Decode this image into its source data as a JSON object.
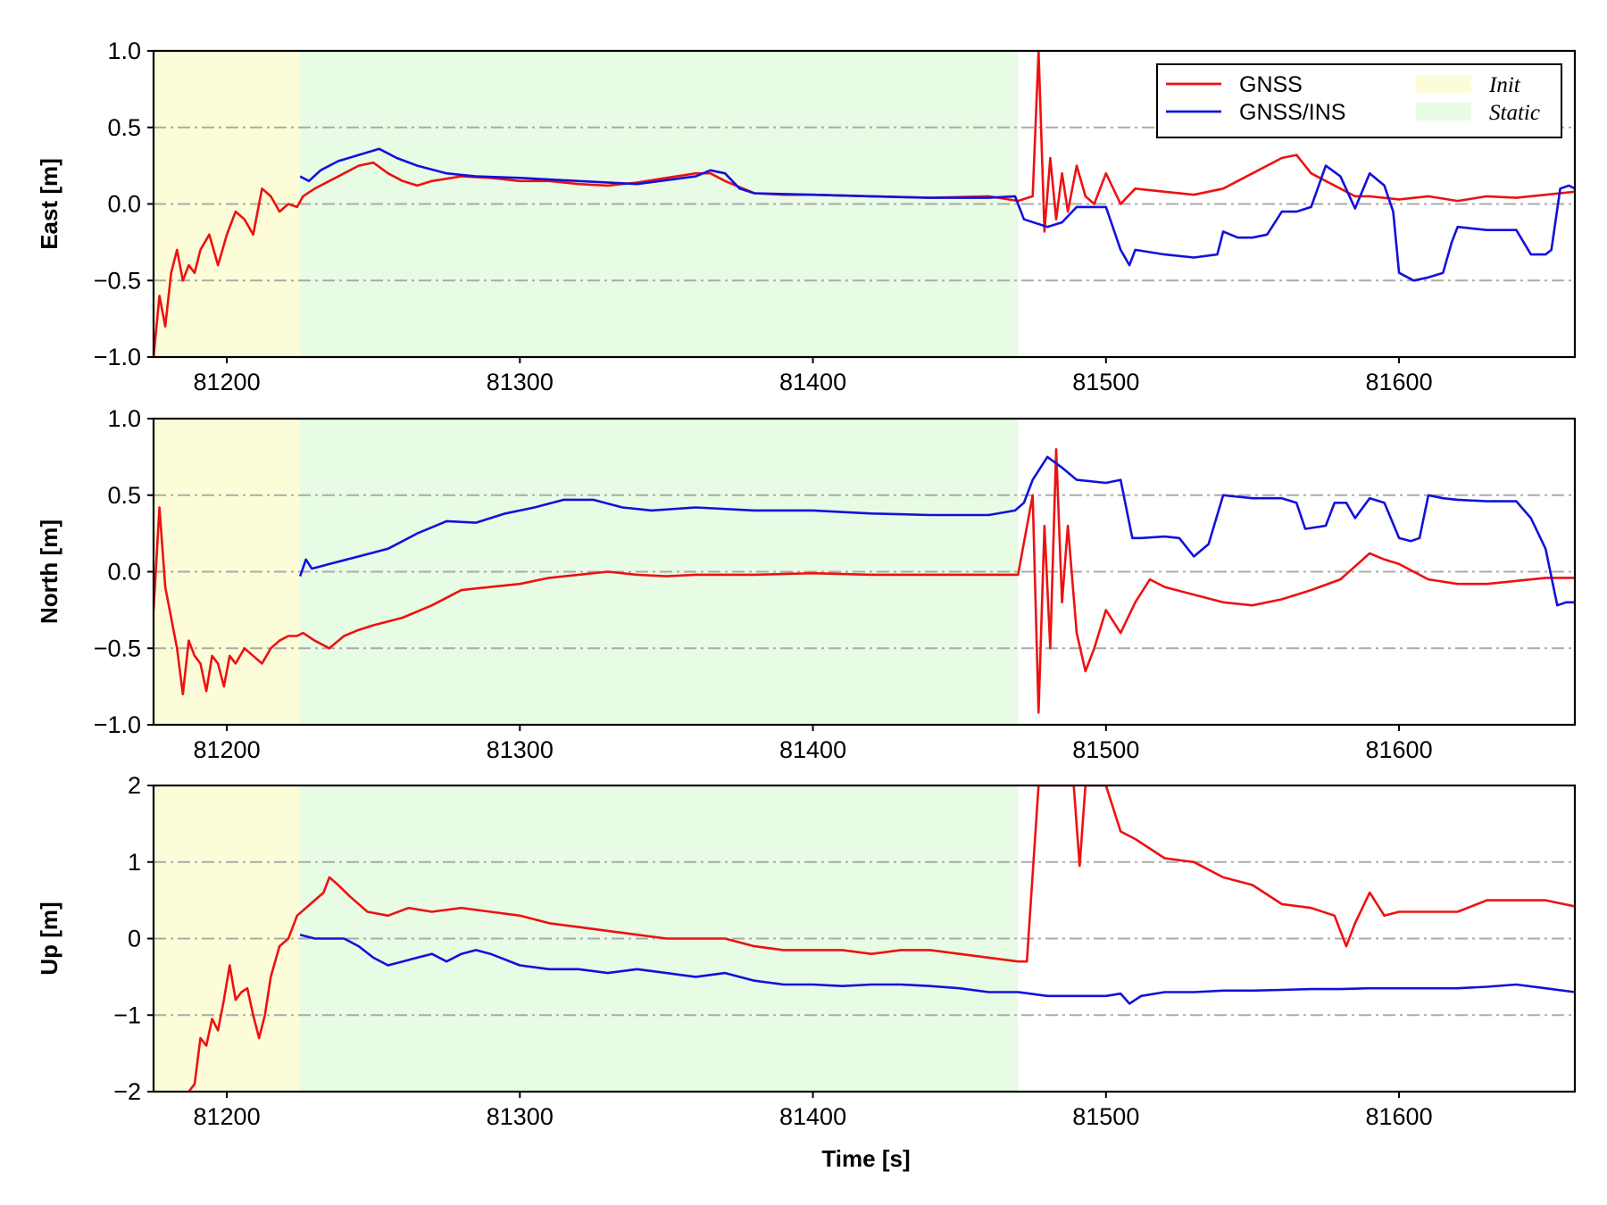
{
  "chart_data": [
    {
      "type": "line",
      "ylabel": "East [m]",
      "xlim": [
        81175,
        81660
      ],
      "ylim": [
        -1.0,
        1.0
      ],
      "yticks": [
        -1.0,
        -0.5,
        0.0,
        0.5,
        1.0
      ],
      "ytick_labels": [
        "−1.0",
        "−0.5",
        "0.0",
        "0.5",
        "1.0"
      ],
      "xticks": [
        81200,
        81300,
        81400,
        81500,
        81600
      ],
      "xtick_labels": [
        "81200",
        "81300",
        "81400",
        "81500",
        "81600"
      ],
      "hlines_dashdot": [
        -0.5,
        0.0,
        0.5
      ],
      "shaded_regions": [
        {
          "name": "Init",
          "x0": 81175,
          "x1": 81225,
          "color": "#fdfcd8"
        },
        {
          "name": "Static",
          "x0": 81225,
          "x1": 81470,
          "color": "#e8fbe4"
        }
      ],
      "legend": {
        "placement": "top-right",
        "entries": [
          {
            "label": "GNSS",
            "kind": "line",
            "color": "#ee1111"
          },
          {
            "label": "GNSS/INS",
            "kind": "line",
            "color": "#1111dd"
          },
          {
            "label": "Init",
            "kind": "patch",
            "color": "#fdfcd8"
          },
          {
            "label": "Static",
            "kind": "patch",
            "color": "#e8fbe4"
          }
        ]
      },
      "series": [
        {
          "name": "GNSS",
          "color": "#ee1111",
          "x": [
            81175,
            81177,
            81179,
            81181,
            81183,
            81185,
            81187,
            81189,
            81191,
            81194,
            81197,
            81200,
            81203,
            81206,
            81209,
            81212,
            81215,
            81218,
            81221,
            81224,
            81226,
            81230,
            81235,
            81240,
            81245,
            81250,
            81255,
            81260,
            81265,
            81270,
            81280,
            81290,
            81300,
            81310,
            81320,
            81330,
            81340,
            81350,
            81360,
            81365,
            81370,
            81380,
            81390,
            81400,
            81420,
            81440,
            81460,
            81470,
            81475,
            81477,
            81479,
            81481,
            81483,
            81485,
            81487,
            81490,
            81493,
            81496,
            81500,
            81505,
            81510,
            81520,
            81530,
            81540,
            81550,
            81560,
            81565,
            81570,
            81575,
            81580,
            81585,
            81590,
            81600,
            81610,
            81620,
            81630,
            81640,
            81650,
            81660
          ],
          "y": [
            -1.0,
            -0.6,
            -0.8,
            -0.45,
            -0.3,
            -0.5,
            -0.4,
            -0.45,
            -0.3,
            -0.2,
            -0.4,
            -0.2,
            -0.05,
            -0.1,
            -0.2,
            0.1,
            0.05,
            -0.05,
            0.0,
            -0.02,
            0.05,
            0.1,
            0.15,
            0.2,
            0.25,
            0.27,
            0.2,
            0.15,
            0.12,
            0.15,
            0.18,
            0.17,
            0.15,
            0.15,
            0.13,
            0.12,
            0.14,
            0.17,
            0.2,
            0.2,
            0.15,
            0.07,
            0.06,
            0.06,
            0.05,
            0.04,
            0.05,
            0.02,
            0.05,
            1.0,
            -0.18,
            0.3,
            -0.1,
            0.2,
            -0.05,
            0.25,
            0.05,
            0.0,
            0.2,
            0.0,
            0.1,
            0.08,
            0.06,
            0.1,
            0.2,
            0.3,
            0.32,
            0.2,
            0.15,
            0.1,
            0.05,
            0.05,
            0.03,
            0.05,
            0.02,
            0.05,
            0.04,
            0.06,
            0.08
          ]
        },
        {
          "name": "GNSS/INS",
          "color": "#1111dd",
          "x": [
            81225,
            81228,
            81232,
            81238,
            81245,
            81252,
            81258,
            81265,
            81275,
            81285,
            81300,
            81320,
            81340,
            81360,
            81365,
            81370,
            81375,
            81380,
            81400,
            81420,
            81440,
            81460,
            81469,
            81472,
            81480,
            81485,
            81490,
            81500,
            81505,
            81508,
            81510,
            81520,
            81530,
            81538,
            81540,
            81545,
            81550,
            81555,
            81560,
            81565,
            81570,
            81575,
            81580,
            81585,
            81590,
            81595,
            81598,
            81600,
            81605,
            81610,
            81615,
            81618,
            81620,
            81630,
            81640,
            81645,
            81650,
            81652,
            81655,
            81658,
            81660
          ],
          "y": [
            0.18,
            0.15,
            0.22,
            0.28,
            0.32,
            0.36,
            0.3,
            0.25,
            0.2,
            0.18,
            0.17,
            0.15,
            0.13,
            0.18,
            0.22,
            0.2,
            0.1,
            0.07,
            0.06,
            0.05,
            0.04,
            0.04,
            0.05,
            -0.1,
            -0.15,
            -0.12,
            -0.02,
            -0.02,
            -0.3,
            -0.4,
            -0.3,
            -0.33,
            -0.35,
            -0.33,
            -0.18,
            -0.22,
            -0.22,
            -0.2,
            -0.05,
            -0.05,
            -0.02,
            0.25,
            0.18,
            -0.03,
            0.2,
            0.12,
            -0.05,
            -0.45,
            -0.5,
            -0.48,
            -0.45,
            -0.25,
            -0.15,
            -0.17,
            -0.17,
            -0.33,
            -0.33,
            -0.3,
            0.1,
            0.12,
            0.1
          ]
        }
      ]
    },
    {
      "type": "line",
      "ylabel": "North [m]",
      "xlim": [
        81175,
        81660
      ],
      "ylim": [
        -1.0,
        1.0
      ],
      "yticks": [
        -1.0,
        -0.5,
        0.0,
        0.5,
        1.0
      ],
      "ytick_labels": [
        "−1.0",
        "−0.5",
        "0.0",
        "0.5",
        "1.0"
      ],
      "xticks": [
        81200,
        81300,
        81400,
        81500,
        81600
      ],
      "xtick_labels": [
        "81200",
        "81300",
        "81400",
        "81500",
        "81600"
      ],
      "hlines_dashdot": [
        -0.5,
        0.0,
        0.5
      ],
      "shaded_regions": [
        {
          "name": "Init",
          "x0": 81175,
          "x1": 81225,
          "color": "#fdfcd8"
        },
        {
          "name": "Static",
          "x0": 81225,
          "x1": 81470,
          "color": "#e8fbe4"
        }
      ],
      "series": [
        {
          "name": "GNSS",
          "color": "#ee1111",
          "x": [
            81175,
            81177,
            81179,
            81181,
            81183,
            81185,
            81187,
            81189,
            81191,
            81193,
            81195,
            81197,
            81199,
            81201,
            81203,
            81206,
            81209,
            81212,
            81215,
            81218,
            81221,
            81224,
            81226,
            81230,
            81235,
            81240,
            81245,
            81250,
            81260,
            81270,
            81280,
            81290,
            81300,
            81310,
            81320,
            81330,
            81340,
            81350,
            81360,
            81380,
            81400,
            81420,
            81440,
            81460,
            81470,
            81475,
            81477,
            81479,
            81481,
            81483,
            81485,
            81487,
            81490,
            81493,
            81496,
            81500,
            81505,
            81510,
            81515,
            81520,
            81530,
            81540,
            81550,
            81560,
            81570,
            81580,
            81590,
            81595,
            81600,
            81610,
            81620,
            81630,
            81640,
            81650,
            81660
          ],
          "y": [
            -0.25,
            0.42,
            -0.1,
            -0.3,
            -0.5,
            -0.8,
            -0.45,
            -0.55,
            -0.6,
            -0.78,
            -0.55,
            -0.6,
            -0.75,
            -0.55,
            -0.6,
            -0.5,
            -0.55,
            -0.6,
            -0.5,
            -0.45,
            -0.42,
            -0.42,
            -0.4,
            -0.45,
            -0.5,
            -0.42,
            -0.38,
            -0.35,
            -0.3,
            -0.22,
            -0.12,
            -0.1,
            -0.08,
            -0.04,
            -0.02,
            0.0,
            -0.02,
            -0.03,
            -0.02,
            -0.02,
            -0.01,
            -0.02,
            -0.02,
            -0.02,
            -0.02,
            0.5,
            -0.92,
            0.3,
            -0.5,
            0.8,
            -0.2,
            0.3,
            -0.4,
            -0.65,
            -0.5,
            -0.25,
            -0.4,
            -0.2,
            -0.05,
            -0.1,
            -0.15,
            -0.2,
            -0.22,
            -0.18,
            -0.12,
            -0.05,
            0.12,
            0.08,
            0.05,
            -0.05,
            -0.08,
            -0.08,
            -0.06,
            -0.04,
            -0.04
          ]
        },
        {
          "name": "GNSS/INS",
          "color": "#1111dd",
          "x": [
            81225,
            81227,
            81229,
            81235,
            81245,
            81255,
            81265,
            81275,
            81285,
            81295,
            81305,
            81315,
            81325,
            81335,
            81345,
            81360,
            81380,
            81400,
            81420,
            81440,
            81460,
            81469,
            81472,
            81475,
            81480,
            81485,
            81490,
            81500,
            81505,
            81509,
            81512,
            81520,
            81525,
            81530,
            81535,
            81540,
            81550,
            81560,
            81565,
            81568,
            81575,
            81578,
            81582,
            81585,
            81590,
            81595,
            81600,
            81604,
            81607,
            81610,
            81615,
            81620,
            81630,
            81640,
            81645,
            81650,
            81654,
            81657,
            81660
          ],
          "y": [
            -0.03,
            0.08,
            0.02,
            0.05,
            0.1,
            0.15,
            0.25,
            0.33,
            0.32,
            0.38,
            0.42,
            0.47,
            0.47,
            0.42,
            0.4,
            0.42,
            0.4,
            0.4,
            0.38,
            0.37,
            0.37,
            0.4,
            0.45,
            0.6,
            0.75,
            0.68,
            0.6,
            0.58,
            0.6,
            0.22,
            0.22,
            0.23,
            0.22,
            0.1,
            0.18,
            0.5,
            0.48,
            0.48,
            0.45,
            0.28,
            0.3,
            0.45,
            0.45,
            0.35,
            0.48,
            0.45,
            0.22,
            0.2,
            0.22,
            0.5,
            0.48,
            0.47,
            0.46,
            0.46,
            0.35,
            0.15,
            -0.22,
            -0.2,
            -0.2
          ]
        }
      ]
    },
    {
      "type": "line",
      "ylabel": "Up [m]",
      "xlabel": "Time [s]",
      "xlim": [
        81175,
        81660
      ],
      "ylim": [
        -2,
        2
      ],
      "yticks": [
        -2,
        -1,
        0,
        1,
        2
      ],
      "ytick_labels": [
        "−2",
        "−1",
        "0",
        "1",
        "2"
      ],
      "xticks": [
        81200,
        81300,
        81400,
        81500,
        81600
      ],
      "xtick_labels": [
        "81200",
        "81300",
        "81400",
        "81500",
        "81600"
      ],
      "hlines_dashdot": [
        -1,
        0,
        1
      ],
      "shaded_regions": [
        {
          "name": "Init",
          "x0": 81175,
          "x1": 81225,
          "color": "#fdfcd8"
        },
        {
          "name": "Static",
          "x0": 81225,
          "x1": 81470,
          "color": "#e8fbe4"
        }
      ],
      "series": [
        {
          "name": "GNSS",
          "color": "#ee1111",
          "x": [
            81187,
            81189,
            81191,
            81193,
            81195,
            81197,
            81199,
            81201,
            81203,
            81205,
            81207,
            81209,
            81211,
            81213,
            81215,
            81218,
            81221,
            81224,
            81227,
            81230,
            81233,
            81235,
            81238,
            81242,
            81248,
            81255,
            81262,
            81270,
            81280,
            81290,
            81300,
            81310,
            81320,
            81330,
            81340,
            81350,
            81360,
            81370,
            81380,
            81390,
            81400,
            81410,
            81420,
            81430,
            81440,
            81450,
            81460,
            81470,
            81473,
            81477,
            81480,
            81485,
            81489,
            81491,
            81493,
            81496,
            81500,
            81505,
            81510,
            81520,
            81530,
            81540,
            81550,
            81560,
            81570,
            81578,
            81582,
            81585,
            81590,
            81595,
            81600,
            81610,
            81620,
            81630,
            81640,
            81650,
            81660
          ],
          "y": [
            -2.0,
            -1.9,
            -1.3,
            -1.4,
            -1.05,
            -1.2,
            -0.8,
            -0.35,
            -0.8,
            -0.7,
            -0.65,
            -1.0,
            -1.3,
            -1.0,
            -0.5,
            -0.1,
            0.0,
            0.3,
            0.4,
            0.5,
            0.6,
            0.8,
            0.7,
            0.55,
            0.35,
            0.3,
            0.4,
            0.35,
            0.4,
            0.35,
            0.3,
            0.2,
            0.15,
            0.1,
            0.05,
            0.0,
            0.0,
            0.0,
            -0.1,
            -0.15,
            -0.15,
            -0.15,
            -0.2,
            -0.15,
            -0.15,
            -0.2,
            -0.25,
            -0.3,
            -0.3,
            2.0,
            2.0,
            2.0,
            2.0,
            0.95,
            2.0,
            2.0,
            2.0,
            1.4,
            1.3,
            1.05,
            1.0,
            0.8,
            0.7,
            0.45,
            0.4,
            0.3,
            -0.1,
            0.2,
            0.6,
            0.3,
            0.35,
            0.35,
            0.35,
            0.5,
            0.5,
            0.5,
            0.42
          ]
        },
        {
          "name": "GNSS/INS",
          "color": "#1111dd",
          "x": [
            81225,
            81230,
            81235,
            81240,
            81245,
            81250,
            81255,
            81260,
            81265,
            81270,
            81275,
            81280,
            81285,
            81290,
            81300,
            81310,
            81320,
            81330,
            81340,
            81350,
            81360,
            81370,
            81380,
            81390,
            81400,
            81410,
            81420,
            81430,
            81440,
            81450,
            81460,
            81470,
            81480,
            81490,
            81500,
            81505,
            81508,
            81512,
            81520,
            81530,
            81540,
            81550,
            81560,
            81570,
            81580,
            81590,
            81600,
            81610,
            81620,
            81630,
            81640,
            81650,
            81660
          ],
          "y": [
            0.05,
            0.0,
            0.0,
            0.0,
            -0.1,
            -0.25,
            -0.35,
            -0.3,
            -0.25,
            -0.2,
            -0.3,
            -0.2,
            -0.15,
            -0.2,
            -0.35,
            -0.4,
            -0.4,
            -0.45,
            -0.4,
            -0.45,
            -0.5,
            -0.45,
            -0.55,
            -0.6,
            -0.6,
            -0.62,
            -0.6,
            -0.6,
            -0.62,
            -0.65,
            -0.7,
            -0.7,
            -0.75,
            -0.75,
            -0.75,
            -0.72,
            -0.85,
            -0.75,
            -0.7,
            -0.7,
            -0.68,
            -0.68,
            -0.67,
            -0.66,
            -0.66,
            -0.65,
            -0.65,
            -0.65,
            -0.65,
            -0.63,
            -0.6,
            -0.65,
            -0.7
          ]
        }
      ]
    }
  ]
}
